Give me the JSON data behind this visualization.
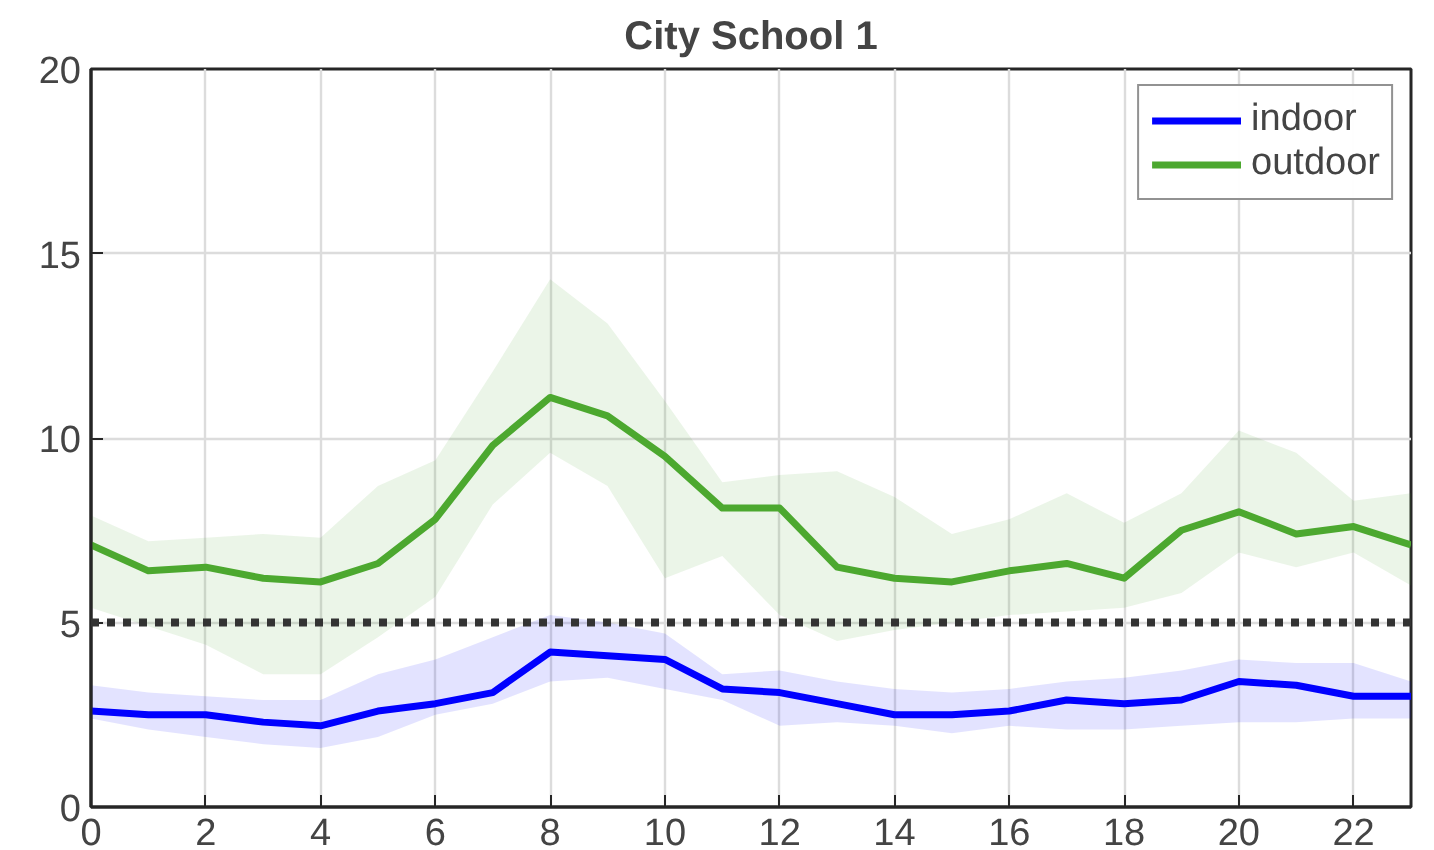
{
  "chart_data": {
    "type": "line",
    "title": "City School 1",
    "x": [
      0,
      1,
      2,
      3,
      4,
      5,
      6,
      7,
      8,
      9,
      10,
      11,
      12,
      13,
      14,
      15,
      16,
      17,
      18,
      19,
      20,
      21,
      22,
      23
    ],
    "series": [
      {
        "name": "indoor",
        "color": "#0000ff",
        "values": [
          2.6,
          2.5,
          2.5,
          2.3,
          2.2,
          2.6,
          2.8,
          3.1,
          4.2,
          4.1,
          4.0,
          3.2,
          3.1,
          2.8,
          2.5,
          2.5,
          2.6,
          2.9,
          2.8,
          2.9,
          3.4,
          3.3,
          3.0,
          3.0
        ],
        "upper": [
          3.3,
          3.1,
          3.0,
          2.9,
          2.9,
          3.6,
          4.0,
          4.6,
          5.2,
          5.0,
          4.7,
          3.6,
          3.7,
          3.4,
          3.2,
          3.1,
          3.2,
          3.4,
          3.5,
          3.7,
          4.0,
          3.9,
          3.9,
          3.4
        ],
        "lower": [
          2.4,
          2.1,
          1.9,
          1.7,
          1.6,
          1.9,
          2.5,
          2.8,
          3.4,
          3.5,
          3.2,
          2.9,
          2.2,
          2.3,
          2.2,
          2.0,
          2.2,
          2.1,
          2.1,
          2.2,
          2.3,
          2.3,
          2.4,
          2.4
        ]
      },
      {
        "name": "outdoor",
        "color": "#4ca82f",
        "values": [
          7.1,
          6.4,
          6.5,
          6.2,
          6.1,
          6.6,
          7.8,
          9.8,
          11.1,
          10.6,
          9.5,
          8.1,
          8.1,
          6.5,
          6.2,
          6.1,
          6.4,
          6.6,
          6.2,
          7.5,
          8.0,
          7.4,
          7.6,
          7.1
        ],
        "upper": [
          7.9,
          7.2,
          7.3,
          7.4,
          7.3,
          8.7,
          9.4,
          11.8,
          14.3,
          13.1,
          11.0,
          8.8,
          9.0,
          9.1,
          8.4,
          7.4,
          7.8,
          8.5,
          7.7,
          8.5,
          10.2,
          9.6,
          8.3,
          8.5
        ],
        "lower": [
          5.4,
          4.9,
          4.4,
          3.6,
          3.6,
          4.6,
          5.7,
          8.2,
          9.6,
          8.7,
          6.2,
          6.8,
          5.2,
          4.5,
          4.8,
          5.0,
          5.2,
          5.3,
          5.4,
          5.8,
          6.9,
          6.5,
          6.9,
          6.0
        ]
      }
    ],
    "xlim": [
      0,
      23
    ],
    "ylim": [
      0,
      20
    ],
    "xticks": [
      0,
      2,
      4,
      6,
      8,
      10,
      12,
      14,
      16,
      18,
      20,
      22
    ],
    "yticks": [
      0,
      5,
      10,
      15,
      20
    ],
    "ref_lines": [
      {
        "axis": "y",
        "value": 5,
        "label": null,
        "color": "#333333",
        "line_style": "dotted"
      }
    ],
    "grid": true,
    "legend": "top right"
  }
}
